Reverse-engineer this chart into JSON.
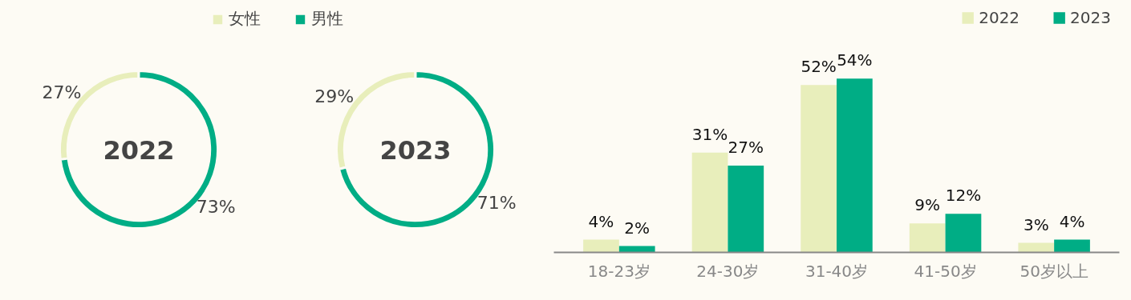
{
  "chart_data": [
    {
      "type": "donut",
      "categories": [
        "女性",
        "男性"
      ],
      "legend": "top",
      "series": [
        {
          "name": "2022",
          "values": [
            27,
            73
          ],
          "colors": [
            "#e8eebb",
            "#00ad85"
          ],
          "value_labels": [
            "27%",
            "73%"
          ]
        },
        {
          "name": "2023",
          "values": [
            29,
            71
          ],
          "colors": [
            "#e8eebb",
            "#00ad85"
          ],
          "value_labels": [
            "29%",
            "71%"
          ]
        }
      ]
    },
    {
      "type": "bar",
      "categories": [
        "18-23岁",
        "24-30岁",
        "31-40岁",
        "41-50岁",
        "50岁以上"
      ],
      "legend": "top right",
      "series": [
        {
          "name": "2022",
          "color": "#e8eebb",
          "values": [
            4,
            31,
            52,
            9,
            3
          ],
          "value_labels": [
            "4%",
            "31%",
            "52%",
            "9%",
            "3%"
          ]
        },
        {
          "name": "2023",
          "color": "#00ad85",
          "values": [
            2,
            27,
            54,
            12,
            4
          ],
          "value_labels": [
            "2%",
            "27%",
            "54%",
            "12%",
            "4%"
          ]
        }
      ]
    }
  ]
}
